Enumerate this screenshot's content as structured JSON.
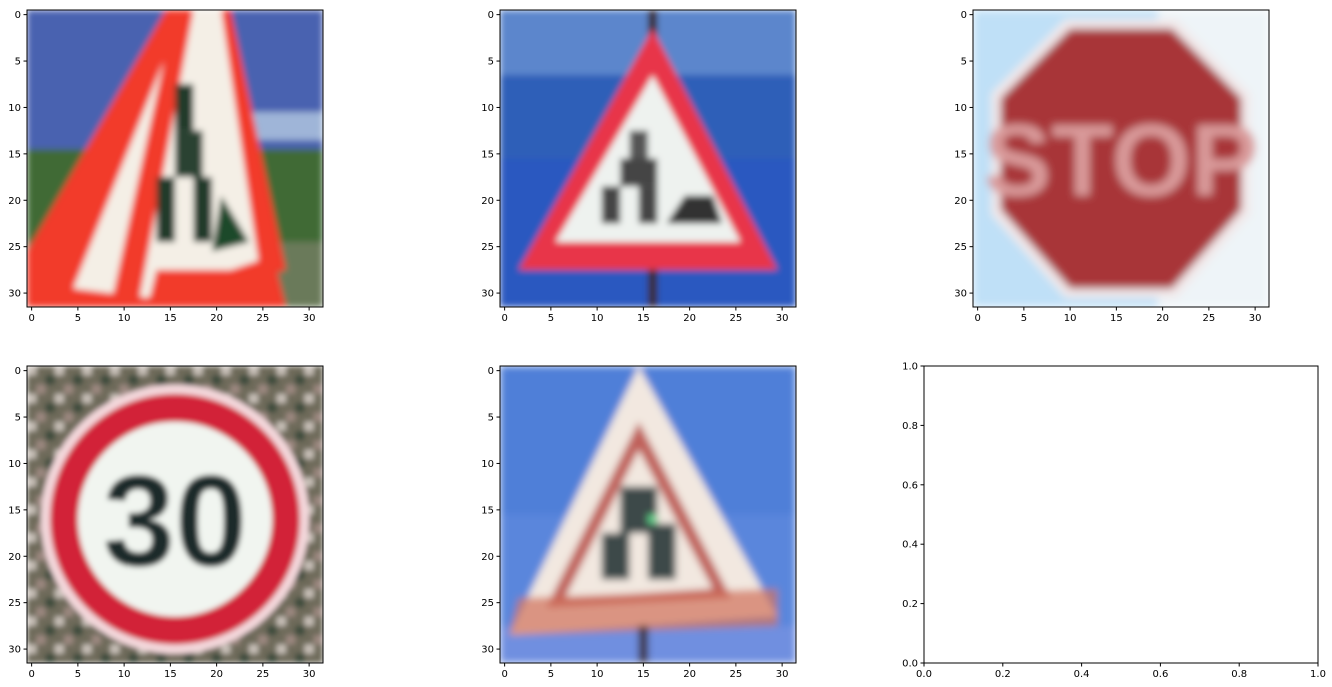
{
  "chart_data": [
    {
      "type": "image",
      "panel": "top-left",
      "subject": "pedestrians warning sign, close-up of left side",
      "image_size": [
        32,
        32
      ],
      "xticks": [
        0,
        5,
        10,
        15,
        20,
        25,
        30
      ],
      "yticks": [
        0,
        5,
        10,
        15,
        20,
        25,
        30
      ],
      "xlim": [
        -0.5,
        31.5
      ],
      "ylim": [
        31.5,
        -0.5
      ],
      "colors": {
        "sky": "#4a62b0",
        "red": "#f23a2a",
        "white": "#f4efe6",
        "grass": "#3f6b35",
        "figure": "#223a2a"
      }
    },
    {
      "type": "image",
      "panel": "top-middle",
      "subject": "road works warning triangle",
      "image_size": [
        32,
        32
      ],
      "xticks": [
        0,
        5,
        10,
        15,
        20,
        25,
        30
      ],
      "yticks": [
        0,
        5,
        10,
        15,
        20,
        25,
        30
      ],
      "xlim": [
        -0.5,
        31.5
      ],
      "ylim": [
        31.5,
        -0.5
      ],
      "colors": {
        "sky": "#2f5fb8",
        "red": "#e8344a",
        "white": "#eef2ef",
        "figure": "#454545",
        "post": "#3a2a2a"
      }
    },
    {
      "type": "image",
      "panel": "top-right",
      "subject": "stop sign",
      "sign_text": "STOP",
      "image_size": [
        32,
        32
      ],
      "xticks": [
        0,
        5,
        10,
        15,
        20,
        25,
        30
      ],
      "yticks": [
        0,
        5,
        10,
        15,
        20,
        25,
        30
      ],
      "xlim": [
        -0.5,
        31.5
      ],
      "ylim": [
        31.5,
        -0.5
      ],
      "colors": {
        "sky": "#bfe0f7",
        "red": "#a83438",
        "text": "#d99a9a",
        "border": "#f2e9ea"
      }
    },
    {
      "type": "image",
      "panel": "bottom-left",
      "subject": "speed limit 30 sign",
      "sign_text": "30",
      "image_size": [
        32,
        32
      ],
      "xticks": [
        0,
        5,
        10,
        15,
        20,
        25,
        30
      ],
      "yticks": [
        0,
        5,
        10,
        15,
        20,
        25,
        30
      ],
      "xlim": [
        -0.5,
        31.5
      ],
      "ylim": [
        31.5,
        -0.5
      ],
      "colors": {
        "bg": "#6e6a5a",
        "red": "#d22038",
        "white": "#f1f5f0",
        "digits": "#1d2a2a"
      }
    },
    {
      "type": "image",
      "panel": "bottom-middle",
      "subject": "children crossing warning triangle",
      "image_size": [
        32,
        32
      ],
      "xticks": [
        0,
        5,
        10,
        15,
        20,
        25,
        30
      ],
      "yticks": [
        0,
        5,
        10,
        15,
        20,
        25,
        30
      ],
      "xlim": [
        -0.5,
        31.5
      ],
      "ylim": [
        31.5,
        -0.5
      ],
      "colors": {
        "sky": "#4f7fd8",
        "red": "#c0605a",
        "white": "#f2e8e0",
        "figure": "#3e4a4a"
      }
    },
    {
      "type": "empty",
      "panel": "bottom-right",
      "xticks": [
        "0.0",
        "0.2",
        "0.4",
        "0.6",
        "0.8",
        "1.0"
      ],
      "yticks": [
        "0.0",
        "0.2",
        "0.4",
        "0.6",
        "0.8",
        "1.0"
      ],
      "xlim": [
        0,
        1
      ],
      "ylim": [
        0,
        1
      ]
    }
  ]
}
